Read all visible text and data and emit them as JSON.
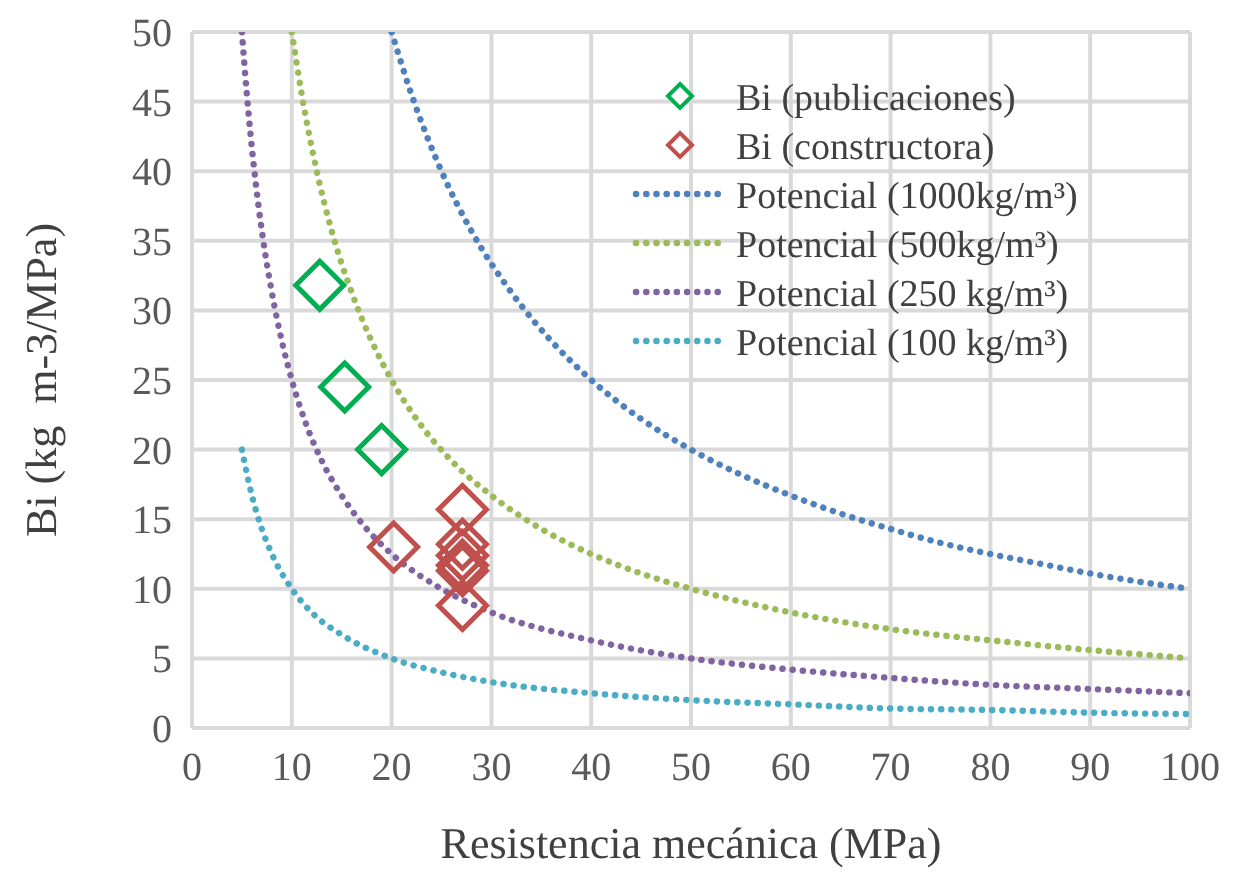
{
  "chart_data": {
    "type": "scatter",
    "xlabel": "Resistencia mecánica (MPa)",
    "ylabel": "Bi (kg  m-3/MPa)",
    "xlim": [
      0,
      100
    ],
    "ylim": [
      0,
      50
    ],
    "xticks": [
      0,
      10,
      20,
      30,
      40,
      50,
      60,
      70,
      80,
      90,
      100
    ],
    "yticks": [
      0,
      5,
      10,
      15,
      20,
      25,
      30,
      35,
      40,
      45,
      50
    ],
    "grid": true,
    "legend": "top right",
    "series": [
      {
        "name": "Bi (publicaciones)",
        "color": "#00b050",
        "marker": "diamond",
        "x": [
          12.8,
          15.3,
          19
        ],
        "values": [
          31.8,
          24.5,
          20
        ]
      },
      {
        "name": "Bi (constructora)",
        "color": "#c0504d",
        "marker": "diamond",
        "x": [
          20.2,
          27.1,
          27.1,
          27.1,
          27.1,
          27.1,
          27.1
        ],
        "values": [
          13,
          15.7,
          13.2,
          12.4,
          11.7,
          11.3,
          8.8
        ]
      },
      {
        "name": "Potencial (1000kg/m³)",
        "color": "#4f81bd",
        "type": "line",
        "line_style": "dotted",
        "x": [
          20,
          22,
          25,
          28,
          32,
          36,
          40,
          45,
          50,
          55,
          60,
          65,
          70,
          75,
          80,
          85,
          90,
          95,
          100
        ],
        "values": [
          50,
          45.5,
          40,
          35.7,
          31.3,
          27.8,
          25,
          22.2,
          20,
          18.2,
          16.7,
          15.4,
          14.3,
          13.3,
          12.5,
          11.8,
          11.1,
          10.5,
          10
        ]
      },
      {
        "name": "Potencial (500kg/m³)",
        "color": "#9bbb59",
        "type": "line",
        "line_style": "dotted",
        "x": [
          10,
          11,
          12.5,
          14,
          16,
          18,
          20,
          23,
          26,
          30,
          35,
          40,
          45,
          50,
          60,
          70,
          80,
          90,
          100
        ],
        "values": [
          50,
          45.5,
          40,
          35.7,
          31.3,
          27.8,
          25,
          21.7,
          19.2,
          16.7,
          14.3,
          12.5,
          11.1,
          10,
          8.3,
          7.1,
          6.3,
          5.6,
          5
        ]
      },
      {
        "name": "Potencial (250 kg/m³)",
        "color": "#8064a2",
        "type": "line",
        "line_style": "dotted",
        "x": [
          5,
          5.5,
          6.25,
          7,
          8,
          9,
          10,
          11.5,
          13,
          15,
          17.5,
          20,
          25,
          30,
          40,
          50,
          60,
          70,
          80,
          90,
          100
        ],
        "values": [
          50,
          45.5,
          40,
          35.7,
          31.3,
          27.8,
          25,
          21.7,
          19.2,
          16.7,
          14.3,
          12.5,
          10,
          8.3,
          6.3,
          5,
          4.2,
          3.6,
          3.1,
          2.8,
          2.5
        ]
      },
      {
        "name": "Potencial (100 kg/m³)",
        "color": "#4bacc6",
        "type": "line",
        "line_style": "dotted",
        "x": [
          5,
          6,
          7,
          8,
          10,
          12,
          15,
          20,
          25,
          30,
          40,
          50,
          60,
          70,
          80,
          90,
          100
        ],
        "values": [
          20,
          16.7,
          14.3,
          12.5,
          10,
          8.3,
          6.7,
          5,
          4,
          3.3,
          2.5,
          2,
          1.7,
          1.4,
          1.3,
          1.1,
          1
        ]
      }
    ]
  }
}
